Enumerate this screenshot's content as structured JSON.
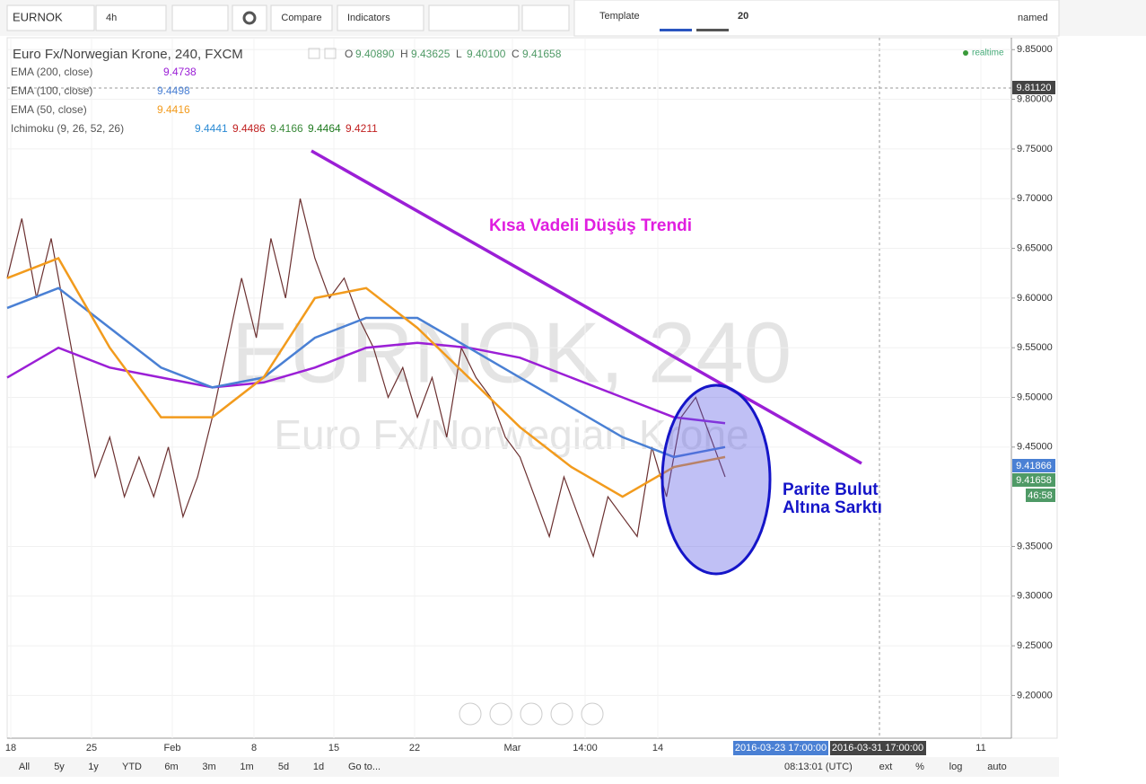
{
  "toolbar": {
    "symbol": "EURNOK",
    "interval": "4h",
    "compare": "Compare",
    "indicators": "Indicators",
    "template": "Template",
    "size": "20",
    "layout": "named"
  },
  "legend": {
    "title": "Euro Fx/Norwegian Krone, 240, FXCM",
    "ohlc": [
      "O",
      "9.40890",
      "H",
      "9.43625",
      "L",
      "9.40100",
      "C",
      "9.41658"
    ],
    "realtime": "realtime",
    "indicators": [
      {
        "name": "EMA (200, close)",
        "values": [
          "9.4738"
        ]
      },
      {
        "name": "EMA (100, close)",
        "values": [
          "9.4498"
        ]
      },
      {
        "name": "EMA (50, close)",
        "values": [
          "9.4416"
        ]
      },
      {
        "name": "Ichimoku (9, 26, 52, 26)",
        "values": [
          "9.4441",
          "9.4486",
          "9.4166",
          "9.4464",
          "9.4211"
        ]
      }
    ]
  },
  "watermark": {
    "symbol": "EURNOK, 240",
    "name": "Euro Fx/Norwegian Krone"
  },
  "chart_data": {
    "type": "line",
    "ylim": [
      9.157,
      9.862
    ],
    "yticks": [
      {
        "value": 9.2,
        "label": "9.20000"
      },
      {
        "value": 9.25,
        "label": "9.25000"
      },
      {
        "value": 9.3,
        "label": "9.30000"
      },
      {
        "value": 9.35,
        "label": "9.35000"
      },
      {
        "value": 9.45,
        "label": "9.45000"
      },
      {
        "value": 9.5,
        "label": "9.50000"
      },
      {
        "value": 9.55,
        "label": "9.55000"
      },
      {
        "value": 9.6,
        "label": "9.60000"
      },
      {
        "value": 9.65,
        "label": "9.65000"
      },
      {
        "value": 9.7,
        "label": "9.70000"
      },
      {
        "value": 9.75,
        "label": "9.75000"
      },
      {
        "value": 9.8,
        "label": "9.80000"
      },
      {
        "value": 9.85,
        "label": "9.85000"
      }
    ],
    "xticklabels": [
      "18",
      "25",
      "Feb",
      "8",
      "15",
      "22",
      "Mar",
      "14:00",
      "14",
      "11"
    ],
    "crosshair_labels": [
      "2016-03-23 17:00:00",
      "2016-03-31 17:00:00"
    ],
    "series": [
      {
        "name": "Price",
        "color": "#6b3030",
        "values": [
          9.62,
          9.68,
          9.6,
          9.66,
          9.58,
          9.5,
          9.42,
          9.46,
          9.4,
          9.44,
          9.4,
          9.45,
          9.38,
          9.42,
          9.48,
          9.55,
          9.62,
          9.56,
          9.66,
          9.6,
          9.7,
          9.64,
          9.6,
          9.62,
          9.58,
          9.55,
          9.5,
          9.53,
          9.48,
          9.52,
          9.46,
          9.55,
          9.52,
          9.5,
          9.46,
          9.44,
          9.4,
          9.36,
          9.42,
          9.38,
          9.34,
          9.4,
          9.38,
          9.36,
          9.45,
          9.4,
          9.48,
          9.5,
          9.46,
          9.42
        ]
      },
      {
        "name": "EMA (200, close)",
        "color": "#9b1fd6",
        "values": [
          9.52,
          9.55,
          9.53,
          9.52,
          9.51,
          9.515,
          9.53,
          9.55,
          9.555,
          9.55,
          9.54,
          9.52,
          9.5,
          9.48,
          9.474
        ]
      },
      {
        "name": "EMA (100, close)",
        "color": "#4a80d4",
        "values": [
          9.59,
          9.61,
          9.57,
          9.53,
          9.51,
          9.52,
          9.56,
          9.58,
          9.58,
          9.55,
          9.52,
          9.49,
          9.46,
          9.44,
          9.45
        ]
      },
      {
        "name": "EMA (50, close)",
        "color": "#f29b1d",
        "values": [
          9.62,
          9.64,
          9.55,
          9.48,
          9.48,
          9.52,
          9.6,
          9.61,
          9.57,
          9.52,
          9.47,
          9.43,
          9.4,
          9.43,
          9.44
        ]
      }
    ]
  },
  "price_labels": [
    "9.81120",
    "9.41866",
    "9.41658",
    "46:58"
  ],
  "annotations": {
    "trend": "Kısa Vadeli Düşüş Trendi",
    "cloud": [
      "Parite Bulut",
      "Altına Sarktı"
    ]
  },
  "bottombar": {
    "ranges": [
      "All",
      "5y",
      "1y",
      "YTD",
      "6m",
      "3m",
      "1m",
      "5d",
      "1d"
    ],
    "goto": "Go to...",
    "time": "08:13:01 (UTC)",
    "options": [
      "ext",
      "%",
      "log",
      "auto"
    ]
  }
}
